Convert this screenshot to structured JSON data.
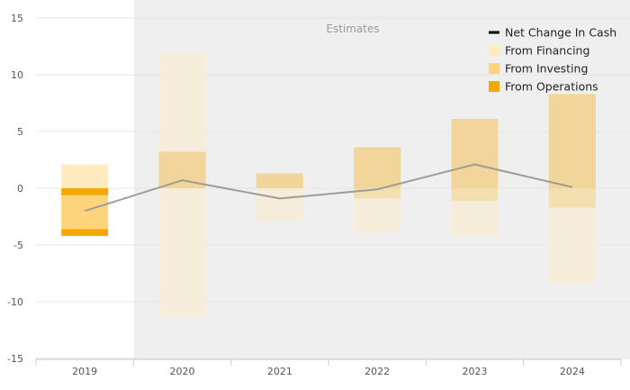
{
  "chart_data": {
    "type": "bar",
    "stacked": true,
    "categories": [
      "2019",
      "2020",
      "2021",
      "2022",
      "2023",
      "2024"
    ],
    "estimates_label": "Estimates",
    "estimates_from_category": "2020",
    "ylim": [
      -15,
      15
    ],
    "yticks": [
      15,
      10,
      5,
      0,
      -5,
      -10,
      -15
    ],
    "grid": true,
    "legend_position": "top-right",
    "series": [
      {
        "name": "From Operations",
        "type": "bar",
        "color": "#f5a800",
        "values": [
          -0.6,
          0,
          0,
          0,
          0,
          0
        ]
      },
      {
        "name": "From Investing",
        "type": "bar",
        "color": "#fdd37c",
        "values": [
          -3.6,
          3.2,
          1.3,
          3.6,
          6.1,
          8.3
        ]
      },
      {
        "name": "From Financing",
        "type": "bar",
        "color": "#feebc0",
        "values": [
          2.1,
          11.9,
          -2.9,
          -3.9,
          -4.2,
          -8.4
        ]
      },
      {
        "name": "Net Change In Cash",
        "type": "line",
        "color": "#000000",
        "values": [
          -2.0,
          0.7,
          -0.9,
          -0.1,
          2.1,
          0.1
        ]
      }
    ],
    "estimate_bands": {
      "From Investing": [
        null,
        null,
        null,
        [
          -0.9,
          3.6
        ],
        [
          -1.1,
          6.1
        ],
        [
          -1.7,
          8.3
        ]
      ],
      "From Financing": [
        null,
        [
          -11.3,
          11.9
        ],
        [
          -2.9,
          1.3
        ],
        [
          -3.9,
          3.6
        ],
        [
          -4.2,
          6.1
        ],
        [
          -8.4,
          8.3
        ]
      ]
    }
  }
}
